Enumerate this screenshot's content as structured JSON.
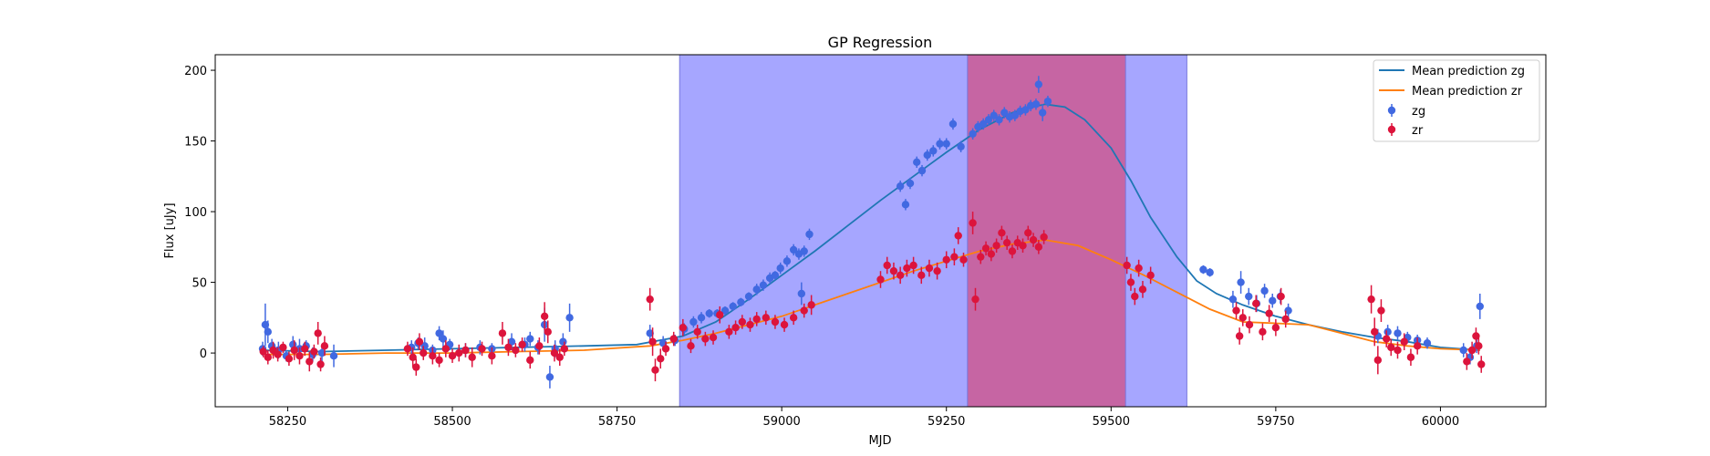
{
  "chart_data": {
    "type": "scatter",
    "title": "GP Regression",
    "xlabel": "MJD",
    "ylabel": "Flux [uJy]",
    "xlim": [
      58140,
      60160
    ],
    "ylim": [
      -38,
      211
    ],
    "xticks": [
      58250,
      58500,
      58750,
      59000,
      59250,
      59500,
      59750,
      60000
    ],
    "yticks": [
      0,
      50,
      100,
      150,
      200
    ],
    "grid": false,
    "legend_position": "top-right",
    "bands": [
      {
        "x0": 58845,
        "x1": 59615,
        "color": "#a6a6ff"
      },
      {
        "x0": 59282,
        "x1": 59522,
        "color": "#c665a3"
      }
    ],
    "lines": [
      {
        "name": "Mean prediction zg",
        "color": "#1f77b4",
        "x": [
          58210,
          58300,
          58400,
          58500,
          58600,
          58700,
          58780,
          58850,
          58900,
          58950,
          59000,
          59050,
          59100,
          59150,
          59200,
          59250,
          59300,
          59350,
          59380,
          59400,
          59430,
          59460,
          59500,
          59530,
          59560,
          59600,
          59630,
          59660,
          59700,
          59750,
          59800,
          59850,
          59900,
          59950,
          60000,
          60060
        ],
        "y": [
          2,
          1,
          2,
          3,
          4,
          5,
          6,
          12,
          22,
          38,
          55,
          72,
          90,
          108,
          125,
          142,
          158,
          170,
          174,
          176,
          174,
          165,
          145,
          122,
          96,
          68,
          51,
          42,
          34,
          26,
          20,
          15,
          11,
          8,
          4,
          2
        ]
      },
      {
        "name": "Mean prediction zr",
        "color": "#ff7f0e",
        "x": [
          58210,
          58300,
          58400,
          58500,
          58600,
          58700,
          58800,
          58850,
          58900,
          58950,
          59000,
          59050,
          59100,
          59150,
          59200,
          59250,
          59300,
          59350,
          59400,
          59450,
          59500,
          59550,
          59600,
          59650,
          59700,
          59750,
          59800,
          59850,
          59900,
          59950,
          60000,
          60060
        ],
        "y": [
          -1,
          -1,
          0,
          0,
          1,
          2,
          5,
          9,
          14,
          20,
          26,
          34,
          42,
          50,
          58,
          65,
          72,
          77,
          80,
          76,
          66,
          55,
          43,
          31,
          22,
          21,
          20,
          14,
          8,
          5,
          3,
          2
        ]
      }
    ],
    "series": [
      {
        "name": "zg",
        "color": "#4169e1",
        "points": [
          [
            58212,
            3,
            5
          ],
          [
            58216,
            20,
            15
          ],
          [
            58220,
            15,
            8
          ],
          [
            58226,
            5,
            5
          ],
          [
            58236,
            2,
            6
          ],
          [
            58248,
            -2,
            4
          ],
          [
            58258,
            6,
            6
          ],
          [
            58268,
            3,
            7
          ],
          [
            58278,
            5,
            4
          ],
          [
            58288,
            -1,
            5
          ],
          [
            58302,
            0,
            6
          ],
          [
            58320,
            -2,
            8
          ],
          [
            58438,
            4,
            5
          ],
          [
            58448,
            7,
            4
          ],
          [
            58458,
            5,
            6
          ],
          [
            58470,
            2,
            4
          ],
          [
            58480,
            14,
            5
          ],
          [
            58486,
            10,
            6
          ],
          [
            58496,
            6,
            4
          ],
          [
            58520,
            2,
            5
          ],
          [
            58542,
            4,
            5
          ],
          [
            58560,
            3,
            4
          ],
          [
            58590,
            8,
            6
          ],
          [
            58610,
            6,
            5
          ],
          [
            58618,
            10,
            5
          ],
          [
            58630,
            4,
            5
          ],
          [
            58640,
            20,
            12
          ],
          [
            58648,
            -17,
            8
          ],
          [
            58656,
            3,
            6
          ],
          [
            58668,
            8,
            6
          ],
          [
            58678,
            25,
            10
          ],
          [
            58800,
            14,
            6
          ],
          [
            58820,
            7,
            5
          ],
          [
            58838,
            9,
            4
          ],
          [
            58852,
            17,
            4
          ],
          [
            58866,
            22,
            4
          ],
          [
            58878,
            25,
            4
          ],
          [
            58890,
            28,
            3
          ],
          [
            58902,
            28,
            3
          ],
          [
            58914,
            30,
            3
          ],
          [
            58926,
            33,
            3
          ],
          [
            58938,
            36,
            3
          ],
          [
            58950,
            40,
            3
          ],
          [
            58962,
            45,
            4
          ],
          [
            58972,
            48,
            4
          ],
          [
            58982,
            53,
            4
          ],
          [
            58990,
            55,
            3
          ],
          [
            58998,
            60,
            4
          ],
          [
            59008,
            65,
            4
          ],
          [
            59018,
            73,
            4
          ],
          [
            59026,
            70,
            4
          ],
          [
            59034,
            72,
            4
          ],
          [
            59042,
            84,
            4
          ],
          [
            59030,
            42,
            8
          ],
          [
            59180,
            118,
            4
          ],
          [
            59188,
            105,
            4
          ],
          [
            59195,
            120,
            4
          ],
          [
            59205,
            135,
            4
          ],
          [
            59213,
            129,
            4
          ],
          [
            59221,
            140,
            4
          ],
          [
            59230,
            143,
            4
          ],
          [
            59240,
            148,
            4
          ],
          [
            59250,
            148,
            4
          ],
          [
            59260,
            162,
            4
          ],
          [
            59272,
            146,
            4
          ],
          [
            59290,
            155,
            4
          ],
          [
            59298,
            160,
            4
          ],
          [
            59306,
            162,
            4
          ],
          [
            59314,
            165,
            4
          ],
          [
            59322,
            168,
            4
          ],
          [
            59330,
            165,
            4
          ],
          [
            59338,
            170,
            4
          ],
          [
            59346,
            167,
            4
          ],
          [
            59354,
            168,
            4
          ],
          [
            59362,
            171,
            4
          ],
          [
            59370,
            172,
            4
          ],
          [
            59378,
            175,
            4
          ],
          [
            59386,
            176,
            4
          ],
          [
            59390,
            190,
            6
          ],
          [
            59396,
            170,
            6
          ],
          [
            59404,
            178,
            4
          ],
          [
            59640,
            59,
            3
          ],
          [
            59650,
            57,
            3
          ],
          [
            59685,
            38,
            6
          ],
          [
            59697,
            50,
            8
          ],
          [
            59709,
            40,
            6
          ],
          [
            59721,
            35,
            6
          ],
          [
            59733,
            44,
            5
          ],
          [
            59745,
            37,
            5
          ],
          [
            59757,
            40,
            5
          ],
          [
            59769,
            30,
            5
          ],
          [
            59905,
            12,
            5
          ],
          [
            59920,
            15,
            5
          ],
          [
            59935,
            14,
            5
          ],
          [
            59950,
            11,
            4
          ],
          [
            59965,
            9,
            4
          ],
          [
            59980,
            7,
            4
          ],
          [
            60035,
            2,
            5
          ],
          [
            60045,
            -3,
            5
          ],
          [
            60055,
            5,
            5
          ],
          [
            60060,
            33,
            9
          ]
        ]
      },
      {
        "name": "zr",
        "color": "#dc143c",
        "points": [
          [
            58213,
            1,
            4
          ],
          [
            58220,
            -3,
            5
          ],
          [
            58228,
            2,
            6
          ],
          [
            58235,
            -1,
            5
          ],
          [
            58243,
            4,
            4
          ],
          [
            58252,
            -4,
            5
          ],
          [
            58260,
            2,
            7
          ],
          [
            58268,
            -2,
            6
          ],
          [
            58276,
            3,
            5
          ],
          [
            58283,
            -6,
            7
          ],
          [
            58290,
            1,
            5
          ],
          [
            58296,
            14,
            8
          ],
          [
            58300,
            -8,
            5
          ],
          [
            58306,
            5,
            7
          ],
          [
            58432,
            3,
            5
          ],
          [
            58440,
            -3,
            7
          ],
          [
            58445,
            -10,
            6
          ],
          [
            58450,
            8,
            6
          ],
          [
            58456,
            0,
            5
          ],
          [
            58470,
            -2,
            6
          ],
          [
            58480,
            -5,
            5
          ],
          [
            58490,
            3,
            6
          ],
          [
            58500,
            -2,
            5
          ],
          [
            58510,
            0,
            6
          ],
          [
            58520,
            2,
            5
          ],
          [
            58530,
            -3,
            7
          ],
          [
            58545,
            3,
            5
          ],
          [
            58560,
            -2,
            6
          ],
          [
            58576,
            14,
            8
          ],
          [
            58585,
            4,
            6
          ],
          [
            58596,
            2,
            5
          ],
          [
            58606,
            6,
            5
          ],
          [
            58618,
            -5,
            6
          ],
          [
            58632,
            5,
            6
          ],
          [
            58640,
            26,
            10
          ],
          [
            58645,
            15,
            8
          ],
          [
            58655,
            0,
            6
          ],
          [
            58663,
            -3,
            6
          ],
          [
            58670,
            3,
            5
          ],
          [
            58800,
            38,
            8
          ],
          [
            58804,
            8,
            10
          ],
          [
            58808,
            -12,
            8
          ],
          [
            58816,
            -4,
            7
          ],
          [
            58824,
            3,
            5
          ],
          [
            58836,
            10,
            5
          ],
          [
            58850,
            18,
            6
          ],
          [
            58862,
            5,
            5
          ],
          [
            58872,
            15,
            5
          ],
          [
            58884,
            10,
            5
          ],
          [
            58896,
            11,
            5
          ],
          [
            58906,
            27,
            6
          ],
          [
            58920,
            15,
            5
          ],
          [
            58930,
            18,
            5
          ],
          [
            58940,
            22,
            5
          ],
          [
            58952,
            20,
            5
          ],
          [
            58962,
            24,
            5
          ],
          [
            58976,
            25,
            5
          ],
          [
            58990,
            22,
            5
          ],
          [
            59004,
            20,
            5
          ],
          [
            59018,
            25,
            5
          ],
          [
            59034,
            30,
            5
          ],
          [
            59045,
            34,
            7
          ],
          [
            59150,
            52,
            6
          ],
          [
            59160,
            62,
            6
          ],
          [
            59170,
            58,
            6
          ],
          [
            59180,
            55,
            6
          ],
          [
            59190,
            60,
            6
          ],
          [
            59200,
            62,
            6
          ],
          [
            59212,
            55,
            6
          ],
          [
            59224,
            60,
            6
          ],
          [
            59236,
            58,
            6
          ],
          [
            59250,
            66,
            6
          ],
          [
            59262,
            68,
            6
          ],
          [
            59268,
            83,
            6
          ],
          [
            59276,
            66,
            5
          ],
          [
            59290,
            92,
            8
          ],
          [
            59294,
            38,
            8
          ],
          [
            59302,
            68,
            5
          ],
          [
            59310,
            74,
            5
          ],
          [
            59318,
            70,
            5
          ],
          [
            59326,
            76,
            5
          ],
          [
            59334,
            85,
            5
          ],
          [
            59342,
            78,
            5
          ],
          [
            59350,
            72,
            5
          ],
          [
            59358,
            78,
            5
          ],
          [
            59366,
            76,
            5
          ],
          [
            59374,
            85,
            5
          ],
          [
            59382,
            80,
            5
          ],
          [
            59390,
            75,
            5
          ],
          [
            59398,
            82,
            5
          ],
          [
            59524,
            62,
            6
          ],
          [
            59530,
            50,
            6
          ],
          [
            59536,
            40,
            6
          ],
          [
            59542,
            60,
            6
          ],
          [
            59548,
            45,
            6
          ],
          [
            59560,
            55,
            6
          ],
          [
            59690,
            30,
            6
          ],
          [
            59695,
            12,
            6
          ],
          [
            59700,
            25,
            6
          ],
          [
            59710,
            20,
            6
          ],
          [
            59720,
            35,
            6
          ],
          [
            59730,
            15,
            6
          ],
          [
            59740,
            28,
            6
          ],
          [
            59750,
            18,
            6
          ],
          [
            59758,
            40,
            6
          ],
          [
            59765,
            24,
            6
          ],
          [
            59895,
            38,
            10
          ],
          [
            59900,
            15,
            10
          ],
          [
            59905,
            -5,
            10
          ],
          [
            59910,
            30,
            8
          ],
          [
            59918,
            10,
            6
          ],
          [
            59925,
            4,
            6
          ],
          [
            59935,
            2,
            6
          ],
          [
            59945,
            8,
            6
          ],
          [
            59955,
            -3,
            6
          ],
          [
            59965,
            5,
            6
          ],
          [
            60040,
            -6,
            6
          ],
          [
            60048,
            2,
            6
          ],
          [
            60054,
            12,
            6
          ],
          [
            60058,
            5,
            6
          ],
          [
            60062,
            -8,
            6
          ]
        ]
      }
    ]
  }
}
